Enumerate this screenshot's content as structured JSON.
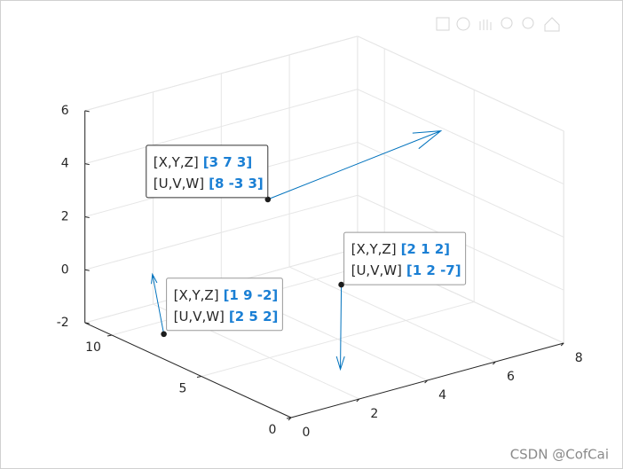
{
  "chart_data": {
    "type": "quiver3",
    "x": [
      3,
      2,
      1
    ],
    "y": [
      7,
      1,
      9
    ],
    "z": [
      3,
      2,
      -2
    ],
    "u": [
      8,
      1,
      2
    ],
    "v": [
      -3,
      2,
      5
    ],
    "w": [
      3,
      -7,
      2
    ],
    "color": "#0072bd",
    "tip_names": [
      "[X,Y,Z]",
      "[U,V,W]"
    ],
    "xyz_labels": [
      "[3 7 3]",
      "[2 1 2]",
      "[1 9 -2]"
    ],
    "uvw_labels": [
      "[8 -3 3]",
      "[1 2 -7]",
      "[2 5 2]"
    ],
    "xlim": [
      0,
      8
    ],
    "ylim": [
      0,
      11.5
    ],
    "zlim": [
      -2,
      6
    ],
    "xticks": [
      0,
      2,
      4,
      6,
      8
    ],
    "yticks": [
      0,
      5,
      10
    ],
    "zticks": [
      -2,
      0,
      2,
      4,
      6
    ],
    "grid": true
  },
  "watermark": "CSDN @CofCai"
}
